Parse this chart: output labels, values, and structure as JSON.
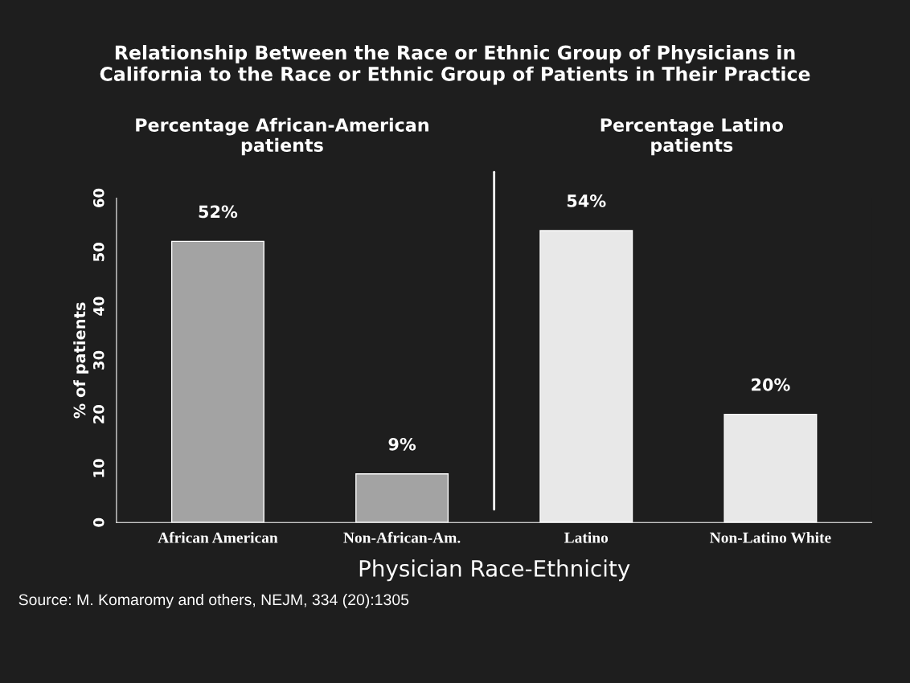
{
  "chart_data": {
    "type": "bar",
    "title": "Relationship Between the Race or Ethnic Group of Physicians in\nCalifornia to the Race or Ethnic Group of Patients in Their Practice",
    "xlabel": "Physician Race-Ethnicity",
    "ylabel": "% of patients",
    "categories": [
      "African American",
      "Non-African-Am.",
      "Latino",
      "Non-Latino White"
    ],
    "values": [
      52,
      9,
      54,
      20
    ],
    "colors": [
      "#a3a3a3",
      "#a3a3a3",
      "#e8e8e8",
      "#e8e8e8"
    ],
    "value_labels": [
      "52%",
      "9%",
      "54%",
      "20%"
    ],
    "ylim": [
      0,
      60
    ],
    "yticks": [
      0,
      10,
      20,
      30,
      40,
      50,
      60
    ],
    "grid": false,
    "annotations": [
      "Percentage African-American\npatients",
      "Percentage Latino\npatients",
      "Source: M. Komaromy and others, NEJM, 334 (20):1305"
    ]
  }
}
